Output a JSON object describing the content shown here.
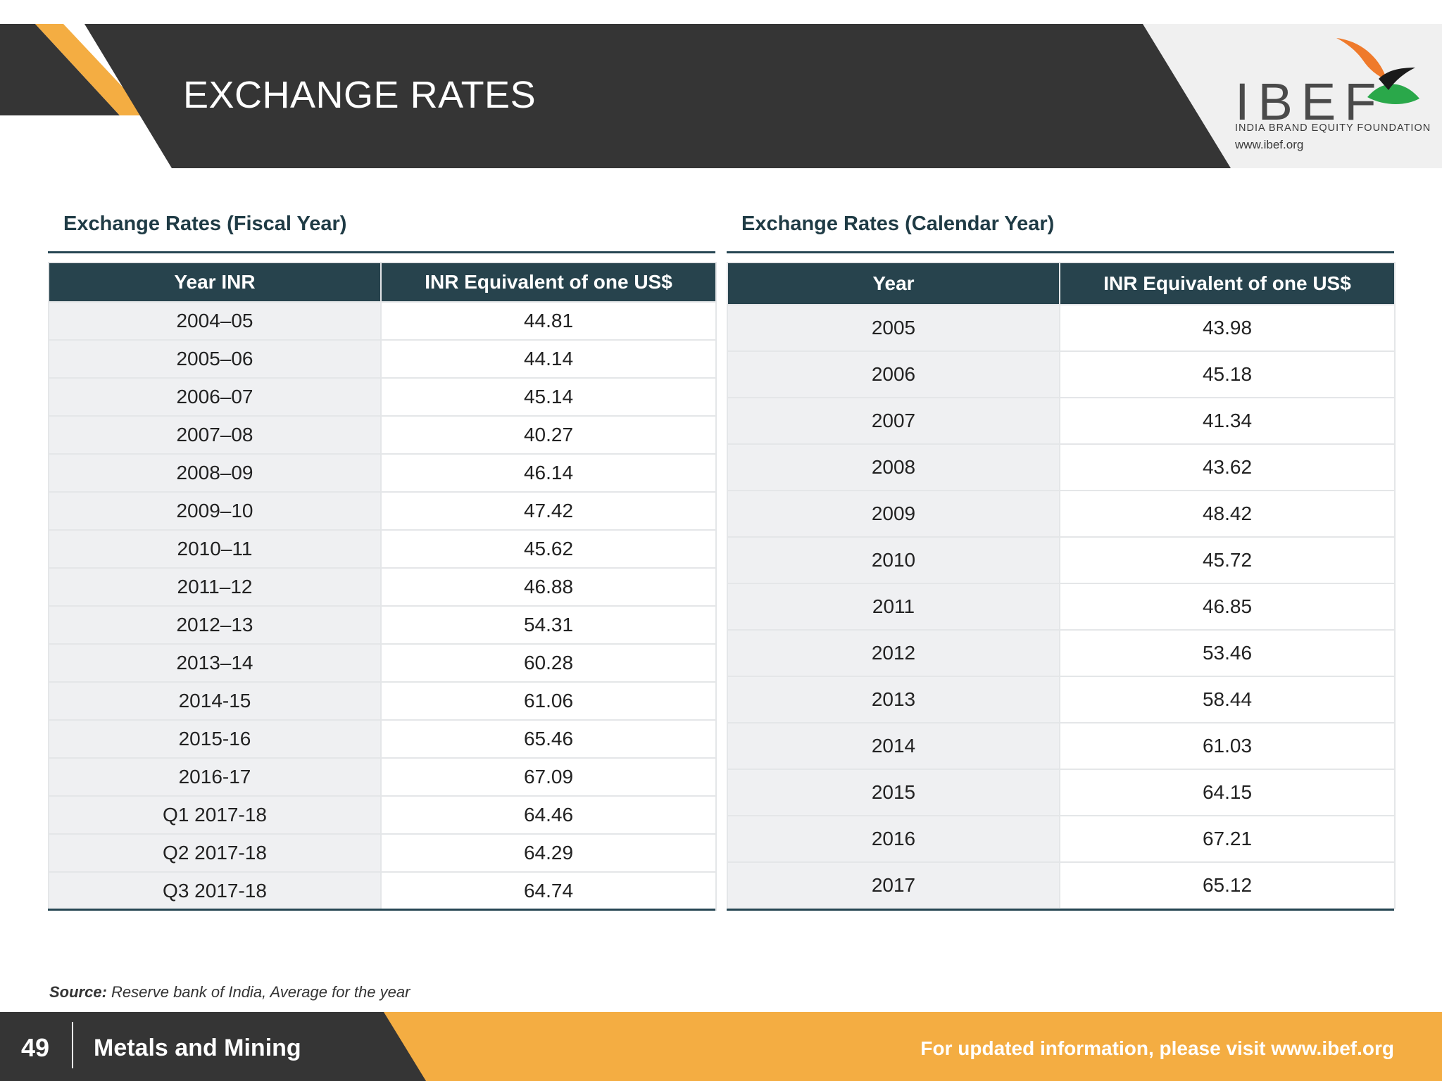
{
  "header": {
    "title": "EXCHANGE RATES"
  },
  "logo": {
    "wordmark": "IBEF",
    "tagline": "INDIA BRAND EQUITY FOUNDATION",
    "url": "www.ibef.org"
  },
  "fiscal_table": {
    "title": "Exchange Rates (Fiscal Year)",
    "headers": [
      "Year INR",
      "INR Equivalent of one US$"
    ],
    "rows": [
      [
        "2004–05",
        "44.81"
      ],
      [
        "2005–06",
        "44.14"
      ],
      [
        "2006–07",
        "45.14"
      ],
      [
        "2007–08",
        "40.27"
      ],
      [
        "2008–09",
        "46.14"
      ],
      [
        "2009–10",
        "47.42"
      ],
      [
        "2010–11",
        "45.62"
      ],
      [
        "2011–12",
        "46.88"
      ],
      [
        "2012–13",
        "54.31"
      ],
      [
        "2013–14",
        "60.28"
      ],
      [
        "2014-15",
        "61.06"
      ],
      [
        "2015-16",
        "65.46"
      ],
      [
        "2016-17",
        "67.09"
      ],
      [
        "Q1 2017-18",
        "64.46"
      ],
      [
        "Q2 2017-18",
        "64.29"
      ],
      [
        "Q3 2017-18",
        "64.74"
      ]
    ]
  },
  "calendar_table": {
    "title": "Exchange Rates (Calendar Year)",
    "headers": [
      "Year",
      "INR Equivalent of one US$"
    ],
    "rows": [
      [
        "2005",
        "43.98"
      ],
      [
        "2006",
        "45.18"
      ],
      [
        "2007",
        "41.34"
      ],
      [
        "2008",
        "43.62"
      ],
      [
        "2009",
        "48.42"
      ],
      [
        "2010",
        "45.72"
      ],
      [
        "2011",
        "46.85"
      ],
      [
        "2012",
        "53.46"
      ],
      [
        "2013",
        "58.44"
      ],
      [
        "2014",
        "61.03"
      ],
      [
        "2015",
        "64.15"
      ],
      [
        "2016",
        "67.21"
      ],
      [
        "2017",
        "65.12"
      ]
    ]
  },
  "source": {
    "label": "Source:",
    "text": " Reserve bank of India, Average for the year"
  },
  "footer": {
    "page_number": "49",
    "section": "Metals and Mining",
    "link_text": "For updated information, please visit www.ibef.org"
  },
  "colors": {
    "header_dark": "#353535",
    "accent_orange": "#f4ad42",
    "table_header": "#27434d",
    "row_shade": "#eff0f2"
  }
}
